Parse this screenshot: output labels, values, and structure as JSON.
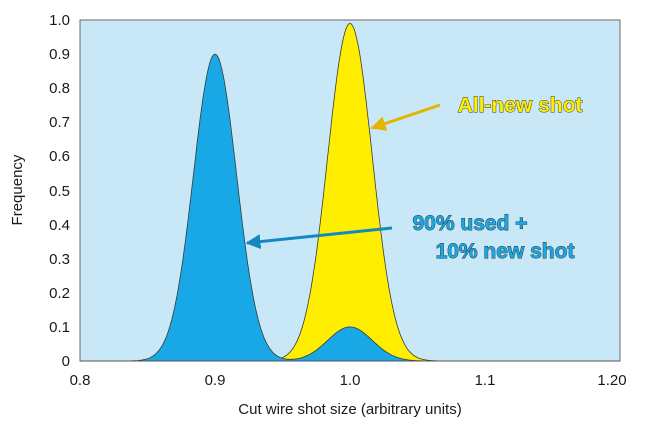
{
  "chart_data": {
    "type": "area",
    "title": "",
    "xlabel": "Cut wire shot size (arbitrary units)",
    "ylabel": "Frequency",
    "xlim": [
      0.8,
      1.2
    ],
    "ylim": [
      0,
      1.0
    ],
    "x_ticks": [
      "0.8",
      "0.9",
      "1.0",
      "1.1",
      "1.20"
    ],
    "y_ticks": [
      "0",
      "0.1",
      "0.2",
      "0.3",
      "0.4",
      "0.5",
      "0.6",
      "0.7",
      "0.8",
      "0.9",
      "1.0"
    ],
    "grid": false,
    "background_color": "#c9e8f7",
    "series": [
      {
        "annotation": "All-new shot",
        "color": "#ffee00",
        "annotation_color": "#ffee00",
        "peaks": [
          {
            "center": 1.0,
            "height": 0.99,
            "sigma": 0.0165
          }
        ]
      },
      {
        "annotation": [
          "90% used +",
          "10% new shot"
        ],
        "color": "#19a8e6",
        "annotation_color": "#19a8e6",
        "peaks": [
          {
            "center": 0.9,
            "height": 0.9,
            "sigma": 0.016
          },
          {
            "center": 1.0,
            "height": 0.1,
            "sigma": 0.0165
          }
        ]
      }
    ]
  }
}
